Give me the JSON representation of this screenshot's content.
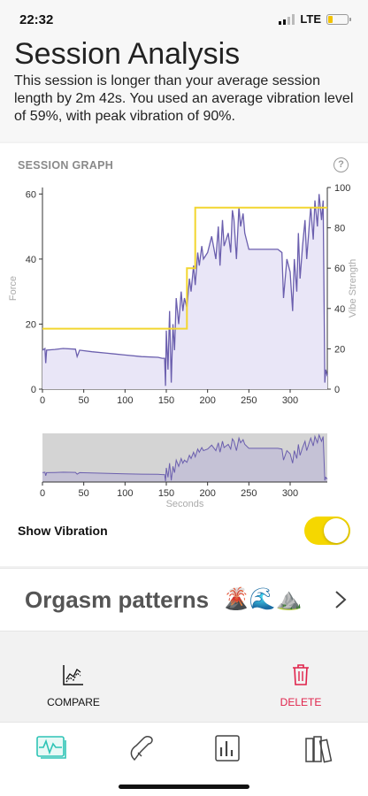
{
  "status": {
    "time": "22:32",
    "network": "LTE"
  },
  "header": {
    "title": "Session Analysis",
    "summary": "This session is longer than your average session length by 2m 42s. You used an average vibration level of 59%, with peak vibration of 90%."
  },
  "graph": {
    "section_label": "SESSION GRAPH",
    "help_icon": "question-icon",
    "left_axis_label": "Force",
    "right_axis_label": "Vibe Strength",
    "mini_x_label": "Seconds"
  },
  "controls": {
    "show_vibration_label": "Show Vibration",
    "show_vibration_on": true
  },
  "patterns": {
    "label": "Orgasm patterns",
    "emojis": "🌋🌊⛰️"
  },
  "actions": {
    "compare_label": "COMPARE",
    "delete_label": "DELETE"
  },
  "tabs": [
    "activity-icon",
    "phone-icon",
    "stats-icon",
    "library-icon"
  ],
  "colors": {
    "force": "#6b5fae",
    "vibe": "#f2d630",
    "accent": "#2ec4b6",
    "delete": "#e0234b"
  },
  "chart_data": {
    "type": "line",
    "x_ticks": [
      0,
      50,
      100,
      150,
      200,
      250,
      300
    ],
    "left_ticks": [
      0,
      20,
      40,
      60
    ],
    "right_ticks": [
      0,
      20,
      40,
      60,
      80,
      100
    ],
    "xlim": [
      0,
      345
    ],
    "ylim_left": [
      0,
      62
    ],
    "ylim_right": [
      0,
      100
    ],
    "series": [
      {
        "name": "Force",
        "axis": "left",
        "x": [
          0,
          3,
          4,
          5,
          15,
          25,
          40,
          42,
          45,
          60,
          80,
          100,
          120,
          140,
          145,
          148,
          149,
          150,
          152,
          154,
          156,
          158,
          160,
          162,
          165,
          168,
          170,
          172,
          175,
          178,
          180,
          183,
          185,
          188,
          190,
          193,
          195,
          200,
          205,
          210,
          213,
          215,
          218,
          220,
          225,
          228,
          230,
          232,
          235,
          238,
          240,
          243,
          245,
          250,
          255,
          260,
          265,
          270,
          275,
          280,
          285,
          290,
          292,
          294,
          296,
          300,
          303,
          305,
          308,
          310,
          312,
          315,
          318,
          320,
          323,
          325,
          328,
          330,
          333,
          335,
          338,
          340,
          342,
          343,
          345
        ],
        "y": [
          12,
          12.5,
          8,
          12,
          12.2,
          12.5,
          12.3,
          10,
          12,
          11.5,
          11,
          10.5,
          10,
          9.8,
          9.5,
          9.5,
          1,
          18,
          6,
          24,
          2,
          20,
          12,
          28,
          20,
          30,
          24,
          28,
          25,
          34,
          30,
          38,
          32,
          42,
          38,
          44,
          40,
          42,
          47,
          40,
          50,
          38,
          52,
          44,
          48,
          42,
          55,
          52,
          40,
          56,
          50,
          54,
          48,
          43,
          43,
          43,
          43,
          43,
          43,
          43,
          43,
          42,
          28,
          34,
          40,
          36,
          24,
          40,
          30,
          48,
          34,
          44,
          52,
          40,
          50,
          56,
          46,
          58,
          50,
          60,
          52,
          58,
          2,
          6,
          4
        ]
      },
      {
        "name": "Vibe Strength",
        "axis": "right",
        "x": [
          0,
          175,
          175,
          185,
          185,
          345
        ],
        "y": [
          30,
          30,
          60,
          60,
          90,
          90
        ]
      }
    ]
  }
}
